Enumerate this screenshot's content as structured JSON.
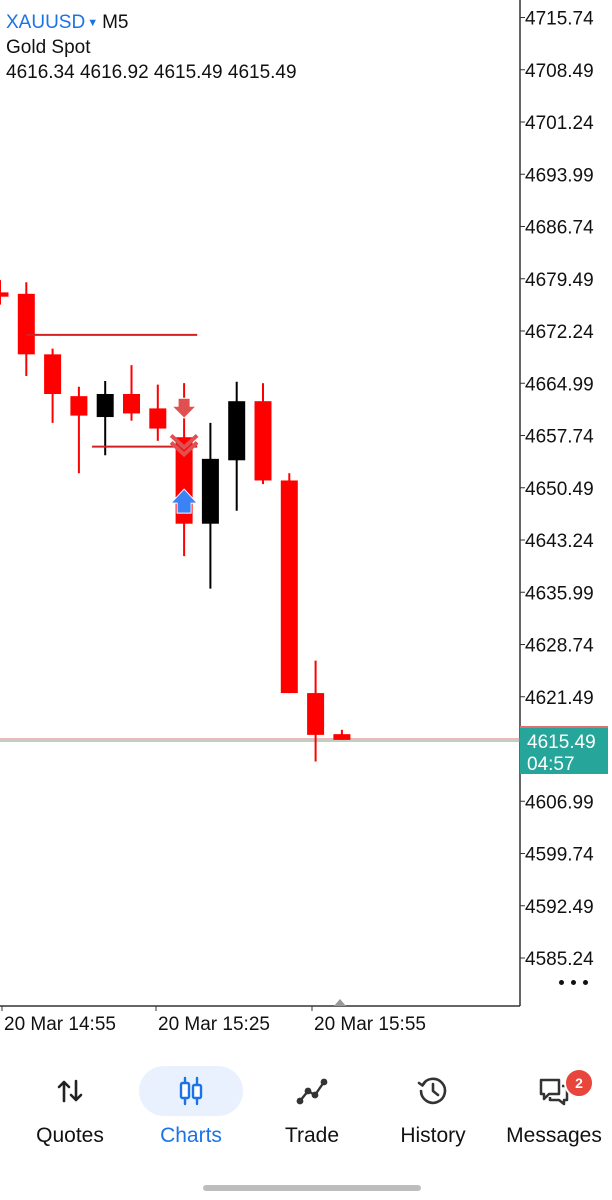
{
  "chart": {
    "symbol": "XAUUSD",
    "timeframe": "M5",
    "description": "Gold Spot",
    "ohlc_text": "4616.34 4616.92 4615.49 4615.49",
    "current_price": "4615.49",
    "countdown": "04:57",
    "more_icon": "more-dots-icon"
  },
  "chart_data": {
    "type": "candlestick",
    "price_axis_ticks": [
      "4715.74",
      "4708.49",
      "4701.24",
      "4693.99",
      "4686.74",
      "4679.49",
      "4672.24",
      "4664.99",
      "4657.74",
      "4650.49",
      "4643.24",
      "4635.99",
      "4628.74",
      "4621.49",
      "4606.99",
      "4599.74",
      "4592.49",
      "4585.24"
    ],
    "ylim": [
      4580,
      4718
    ],
    "time_axis_labels": [
      "20 Mar 14:55",
      "20 Mar 15:25",
      "20 Mar 15:55"
    ],
    "bullish_color": "#000000",
    "bearish_color": "#ff0000",
    "current_price_value": 4615.49,
    "current_price_badge_color": "#26a69a",
    "candles": [
      {
        "o": 4677.6,
        "h": 4679.3,
        "l": 4675.9,
        "c": 4677.0
      },
      {
        "o": 4677.4,
        "h": 4679.0,
        "l": 4666.0,
        "c": 4669.0
      },
      {
        "o": 4669.0,
        "h": 4669.8,
        "l": 4659.5,
        "c": 4663.5
      },
      {
        "o": 4663.2,
        "h": 4664.5,
        "l": 4652.5,
        "c": 4660.5
      },
      {
        "o": 4660.3,
        "h": 4665.3,
        "l": 4655.0,
        "c": 4663.5
      },
      {
        "o": 4663.5,
        "h": 4667.5,
        "l": 4659.8,
        "c": 4660.8
      },
      {
        "o": 4661.5,
        "h": 4664.8,
        "l": 4657.0,
        "c": 4658.7
      },
      {
        "o": 4657.5,
        "h": 4665.0,
        "l": 4641.0,
        "c": 4645.5
      },
      {
        "o": 4645.5,
        "h": 4659.5,
        "l": 4636.5,
        "c": 4654.5
      },
      {
        "o": 4654.3,
        "h": 4665.2,
        "l": 4647.3,
        "c": 4662.5
      },
      {
        "o": 4662.5,
        "h": 4665.0,
        "l": 4651.0,
        "c": 4651.5
      },
      {
        "o": 4651.5,
        "h": 4652.5,
        "l": 4622.0,
        "c": 4622.0
      },
      {
        "o": 4622.0,
        "h": 4626.5,
        "l": 4612.5,
        "c": 4616.2
      },
      {
        "o": 4616.3,
        "h": 4616.9,
        "l": 4615.5,
        "c": 4615.5
      }
    ],
    "level_lines": [
      {
        "price": 4671.7,
        "from_candle": 1,
        "to_candle": 7.5
      },
      {
        "price": 4656.2,
        "from_candle": 3.5,
        "to_candle": 7.5
      }
    ],
    "trade_markers": [
      {
        "type": "sell-arrow",
        "candle": 7,
        "price": 4660.0,
        "color": "#e05050"
      },
      {
        "type": "close-chevron",
        "candle": 7,
        "price": 4656.5,
        "color": "#e05050"
      },
      {
        "type": "buy-arrow",
        "candle": 7,
        "price": 4648.5,
        "color": "#3b82f6"
      }
    ]
  },
  "nav": {
    "items": [
      {
        "label": "Quotes",
        "icon": "quotes-arrows-icon"
      },
      {
        "label": "Charts",
        "icon": "candlestick-icon"
      },
      {
        "label": "Trade",
        "icon": "trade-line-icon"
      },
      {
        "label": "History",
        "icon": "history-clock-icon"
      },
      {
        "label": "Messages",
        "icon": "messages-icon",
        "badge": "2"
      }
    ],
    "active": "Charts"
  }
}
